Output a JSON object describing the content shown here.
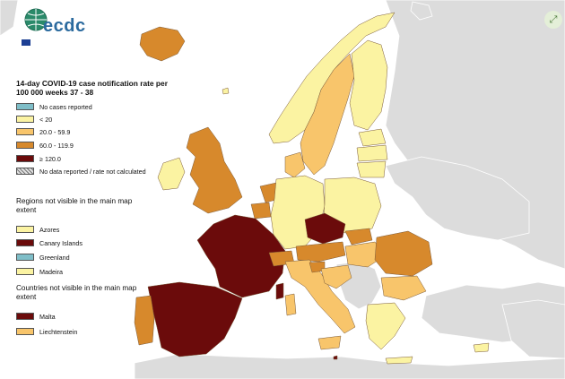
{
  "legend": {
    "title": "14-day COVID-19 case notification rate per 100 000 weeks 37 - 38",
    "classes": [
      {
        "label": "No cases reported",
        "color": "#7fbec8"
      },
      {
        "label": "< 20",
        "color": "#fbf3a2"
      },
      {
        "label": "20.0 - 59.9",
        "color": "#f8c56b"
      },
      {
        "label": "60.0 - 119.9",
        "color": "#d7892c"
      },
      {
        "label": "≥ 120.0",
        "color": "#6b0b0b"
      },
      {
        "label": "No data reported / rate not calculated",
        "color": "hatched"
      }
    ]
  },
  "regions_section": {
    "title": "Regions not visible in the main map extent",
    "items": [
      {
        "label": "Azores",
        "color": "#fbf3a2"
      },
      {
        "label": "Canary Islands",
        "color": "#6b0b0b"
      },
      {
        "label": "Greenland",
        "color": "#7fbec8"
      },
      {
        "label": "Madeira",
        "color": "#fbf3a2"
      }
    ]
  },
  "countries_section": {
    "title": "Countries not visible in the main map extent",
    "items": [
      {
        "label": "Malta",
        "color": "#6b0b0b"
      },
      {
        "label": "Liechtenstein",
        "color": "#f8c56b"
      }
    ]
  },
  "logo": {
    "text": "ecdc",
    "icon": "globe-logo-icon"
  },
  "controls": {
    "expand_icon": "expand-icon"
  },
  "colors": {
    "non_eu_land": "#dcdcdc",
    "sea": "#ffffff",
    "border": "#7a5a3a"
  }
}
